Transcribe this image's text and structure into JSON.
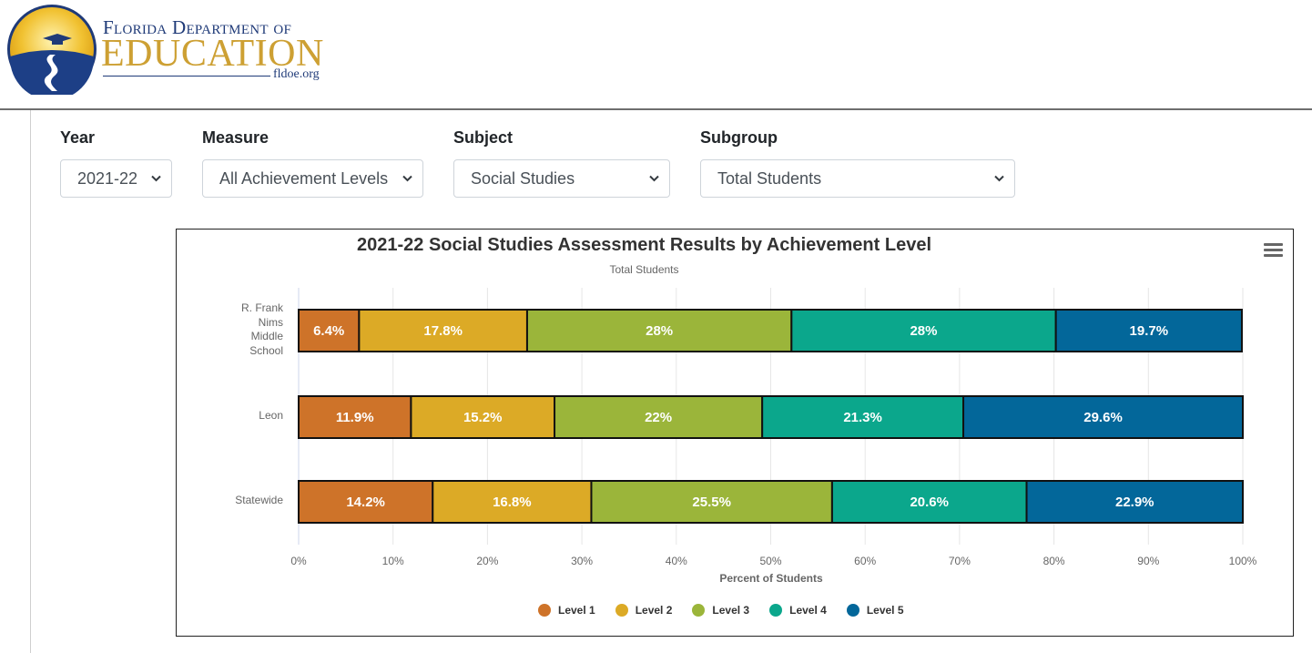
{
  "header": {
    "logo_line1": "Florida Department of",
    "logo_line2": "EDUCATION",
    "logo_url": "fldoe.org"
  },
  "filters": {
    "year": {
      "label": "Year",
      "value": "2021-22"
    },
    "measure": {
      "label": "Measure",
      "value": "All Achievement Levels"
    },
    "subject": {
      "label": "Subject",
      "value": "Social Studies"
    },
    "subgroup": {
      "label": "Subgroup",
      "value": "Total Students"
    }
  },
  "chart_data": {
    "type": "bar",
    "orientation": "horizontal",
    "stacked": true,
    "title": "2021-22 Social Studies Assessment Results by Achievement Level",
    "subtitle": "Total Students",
    "xlabel": "Percent of Students",
    "ylabel": "",
    "xlim": [
      0,
      100
    ],
    "x_ticks": [
      "0%",
      "10%",
      "20%",
      "30%",
      "40%",
      "50%",
      "60%",
      "70%",
      "80%",
      "90%",
      "100%"
    ],
    "categories": [
      "R. Frank Nims Middle School",
      "Leon",
      "Statewide"
    ],
    "category_lines": [
      [
        "R. Frank",
        "Nims",
        "Middle",
        "School"
      ],
      [
        "Leon"
      ],
      [
        "Statewide"
      ]
    ],
    "series": [
      {
        "name": "Level 1",
        "color": "#ce7329",
        "values": [
          6.4,
          11.9,
          14.2
        ],
        "labels": [
          "6.4%",
          "11.9%",
          "14.2%"
        ]
      },
      {
        "name": "Level 2",
        "color": "#dcaa26",
        "values": [
          17.8,
          15.2,
          16.8
        ],
        "labels": [
          "17.8%",
          "15.2%",
          "16.8%"
        ]
      },
      {
        "name": "Level 3",
        "color": "#9bb53a",
        "values": [
          28,
          22,
          25.5
        ],
        "labels": [
          "28%",
          "22%",
          "25.5%"
        ]
      },
      {
        "name": "Level 4",
        "color": "#0ba78c",
        "values": [
          28,
          21.3,
          20.6
        ],
        "labels": [
          "28%",
          "21.3%",
          "20.6%"
        ]
      },
      {
        "name": "Level 5",
        "color": "#03679a",
        "values": [
          19.7,
          29.6,
          22.9
        ],
        "labels": [
          "19.7%",
          "29.6%",
          "22.9%"
        ]
      }
    ],
    "grid": true,
    "legend_position": "bottom-center"
  }
}
